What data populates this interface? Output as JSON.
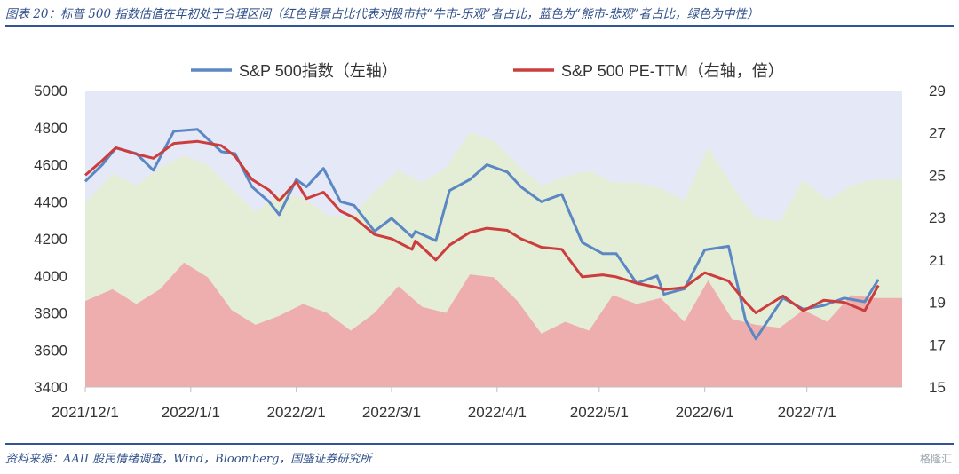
{
  "figure": {
    "title": "图表 20：标普 500 指数估值在年初处于合理区间（红色背景占比代表对股市持“牛市-乐观”者占比，蓝色为“熊市-悲观”者占比，绿色为中性）",
    "source": "资料来源：AAII 股民情绪调查，Wind，Bloomberg，国盛证券研究所",
    "watermark": "格隆汇"
  },
  "colors": {
    "index_line": "#5b87c2",
    "pe_line": "#cc3d3d",
    "bearish_area": "#e5e9f7",
    "neutral_area": "#e4eed7",
    "bullish_area": "#eeaeae"
  },
  "chart_data": {
    "type": "line",
    "x_ticks": [
      "2021/12/1",
      "2022/1/1",
      "2022/2/1",
      "2022/3/1",
      "2022/4/1",
      "2022/5/1",
      "2022/6/1",
      "2022/7/1"
    ],
    "y_left": {
      "ticks": [
        3400,
        3600,
        3800,
        4000,
        4200,
        4400,
        4600,
        4800,
        5000
      ],
      "ylim": [
        3400,
        5000
      ]
    },
    "y_right": {
      "ticks": [
        15,
        17,
        19,
        21,
        23,
        25,
        27,
        29
      ],
      "ylim": [
        15,
        29
      ]
    },
    "legend": {
      "placement": "top"
    },
    "series": [
      {
        "name": "S&P 500指数（左轴）",
        "axis": "left",
        "x": [
          "2021/12/1",
          "2021/12/6",
          "2021/12/10",
          "2021/12/16",
          "2021/12/21",
          "2021/12/27",
          "2022/1/3",
          "2022/1/10",
          "2022/1/14",
          "2022/1/19",
          "2022/1/24",
          "2022/1/27",
          "2022/2/1",
          "2022/2/4",
          "2022/2/9",
          "2022/2/14",
          "2022/2/18",
          "2022/2/24",
          "2022/3/1",
          "2022/3/7",
          "2022/3/8",
          "2022/3/14",
          "2022/3/18",
          "2022/3/24",
          "2022/3/29",
          "2022/4/4",
          "2022/4/8",
          "2022/4/14",
          "2022/4/20",
          "2022/4/26",
          "2022/5/2",
          "2022/5/6",
          "2022/5/12",
          "2022/5/18",
          "2022/5/20",
          "2022/5/26",
          "2022/6/1",
          "2022/6/8",
          "2022/6/13",
          "2022/6/16",
          "2022/6/24",
          "2022/6/30",
          "2022/7/6",
          "2022/7/12",
          "2022/7/18",
          "2022/7/22"
        ],
        "values": [
          4510,
          4600,
          4690,
          4660,
          4570,
          4780,
          4790,
          4670,
          4660,
          4480,
          4400,
          4330,
          4520,
          4480,
          4580,
          4400,
          4380,
          4240,
          4310,
          4210,
          4240,
          4190,
          4460,
          4520,
          4600,
          4560,
          4480,
          4400,
          4440,
          4180,
          4120,
          4120,
          3960,
          4000,
          3900,
          3930,
          4140,
          4160,
          3760,
          3660,
          3880,
          3820,
          3840,
          3880,
          3860,
          3980
        ]
      },
      {
        "name": "S&P 500 PE-TTM（右轴，倍）",
        "axis": "right",
        "x": [
          "2021/12/1",
          "2021/12/6",
          "2021/12/10",
          "2021/12/16",
          "2021/12/21",
          "2021/12/27",
          "2022/1/3",
          "2022/1/10",
          "2022/1/14",
          "2022/1/19",
          "2022/1/24",
          "2022/1/27",
          "2022/2/1",
          "2022/2/4",
          "2022/2/9",
          "2022/2/14",
          "2022/2/18",
          "2022/2/24",
          "2022/3/1",
          "2022/3/7",
          "2022/3/8",
          "2022/3/14",
          "2022/3/18",
          "2022/3/24",
          "2022/3/29",
          "2022/4/4",
          "2022/4/8",
          "2022/4/14",
          "2022/4/20",
          "2022/4/26",
          "2022/5/2",
          "2022/5/6",
          "2022/5/12",
          "2022/5/18",
          "2022/5/20",
          "2022/5/26",
          "2022/6/1",
          "2022/6/8",
          "2022/6/13",
          "2022/6/16",
          "2022/6/24",
          "2022/6/30",
          "2022/7/6",
          "2022/7/12",
          "2022/7/18",
          "2022/7/22"
        ],
        "values": [
          25.0,
          25.7,
          26.3,
          26.0,
          25.8,
          26.5,
          26.6,
          26.4,
          25.9,
          24.8,
          24.3,
          23.8,
          24.7,
          23.9,
          24.2,
          23.3,
          23.0,
          22.2,
          22.0,
          21.5,
          21.9,
          21.0,
          21.7,
          22.3,
          22.5,
          22.4,
          22.0,
          21.6,
          21.5,
          20.2,
          20.3,
          20.2,
          19.9,
          19.7,
          19.6,
          19.7,
          20.4,
          20.0,
          19.0,
          18.5,
          19.3,
          18.6,
          19.1,
          19.0,
          18.6,
          19.8
        ]
      }
    ],
    "sentiment_areas": {
      "unit": "%",
      "x": [
        "2021/12/1",
        "2021/12/9",
        "2021/12/16",
        "2021/12/23",
        "2021/12/30",
        "2022/1/6",
        "2022/1/13",
        "2022/1/20",
        "2022/1/27",
        "2022/2/3",
        "2022/2/10",
        "2022/2/17",
        "2022/2/24",
        "2022/3/3",
        "2022/3/10",
        "2022/3/17",
        "2022/3/24",
        "2022/3/31",
        "2022/4/7",
        "2022/4/14",
        "2022/4/21",
        "2022/4/28",
        "2022/5/5",
        "2022/5/12",
        "2022/5/19",
        "2022/5/26",
        "2022/6/2",
        "2022/6/9",
        "2022/6/16",
        "2022/6/23",
        "2022/6/30",
        "2022/7/7",
        "2022/7/14",
        "2022/7/21",
        "2022/7/26"
      ],
      "bullish": [
        29,
        33,
        28,
        33,
        42,
        37,
        26,
        21,
        24,
        28,
        25,
        19,
        25,
        34,
        27,
        25,
        38,
        37,
        29,
        18,
        22,
        19,
        31,
        28,
        30,
        22,
        36,
        23,
        21,
        20,
        26,
        22,
        31,
        30,
        30
      ],
      "bullish_plus_neutral": [
        62,
        72,
        68,
        74,
        78,
        75,
        67,
        59,
        65,
        64,
        58,
        57,
        66,
        73,
        69,
        74,
        86,
        83,
        75,
        68,
        71,
        73,
        69,
        69,
        67,
        63,
        81,
        68,
        57,
        56,
        70,
        63,
        68,
        70,
        70
      ]
    }
  }
}
